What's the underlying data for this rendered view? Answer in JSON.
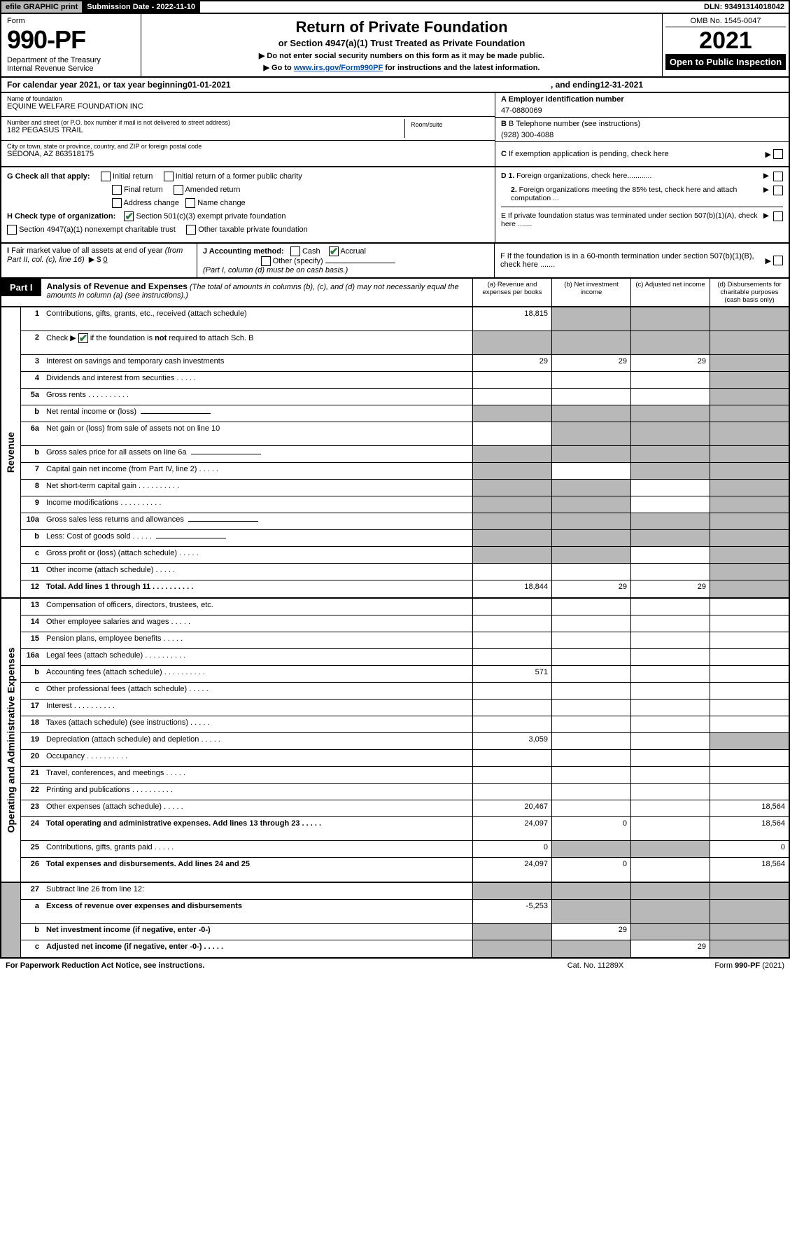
{
  "topbar": {
    "efile": "efile GRAPHIC print",
    "subdate_label": "Submission Date - 2022-11-10",
    "dln": "DLN: 93491314018042"
  },
  "header": {
    "form_word": "Form",
    "form_no": "990-PF",
    "dept": "Department of the Treasury\nInternal Revenue Service",
    "title": "Return of Private Foundation",
    "subtitle": "or Section 4947(a)(1) Trust Treated as Private Foundation",
    "instr1": "▶ Do not enter social security numbers on this form as it may be made public.",
    "instr2_pre": "▶ Go to ",
    "instr2_link": "www.irs.gov/Form990PF",
    "instr2_post": " for instructions and the latest information.",
    "omb": "OMB No. 1545-0047",
    "year": "2021",
    "otp": "Open to Public Inspection"
  },
  "calrow": {
    "pre": "For calendar year 2021, or tax year beginning ",
    "begin": "01-01-2021",
    "mid": ", and ending ",
    "end": "12-31-2021"
  },
  "info": {
    "name_label": "Name of foundation",
    "name": "EQUINE WELFARE FOUNDATION INC",
    "addr_label": "Number and street (or P.O. box number if mail is not delivered to street address)",
    "addr": "182 PEGASUS TRAIL",
    "room_label": "Room/suite",
    "city_label": "City or town, state or province, country, and ZIP or foreign postal code",
    "city": "SEDONA, AZ  863518175",
    "a_label": "A Employer identification number",
    "a_val": "47-0880069",
    "b_label": "B Telephone number (see instructions)",
    "b_val": "(928) 300-4088",
    "c_label": "C If exemption application is pending, check here"
  },
  "checks": {
    "g_label": "G Check all that apply:",
    "g_opts": [
      "Initial return",
      "Initial return of a former public charity",
      "Final return",
      "Amended return",
      "Address change",
      "Name change"
    ],
    "h_label": "H Check type of organization:",
    "h_opt1": "Section 501(c)(3) exempt private foundation",
    "h_opt2": "Section 4947(a)(1) nonexempt charitable trust",
    "h_opt3": "Other taxable private foundation",
    "i_label": "I Fair market value of all assets at end of year (from Part II, col. (c), line 16)",
    "i_prefix": "▶ $",
    "i_val": "0",
    "j_label": "J Accounting method:",
    "j_cash": "Cash",
    "j_accrual": "Accrual",
    "j_other": "Other (specify)",
    "j_note": "(Part I, column (d) must be on cash basis.)",
    "d1": "D 1. Foreign organizations, check here............",
    "d2": "2. Foreign organizations meeting the 85% test, check here and attach computation ...",
    "e": "E  If private foundation status was terminated under section 507(b)(1)(A), check here .......",
    "f": "F  If the foundation is in a 60-month termination under section 507(b)(1)(B), check here .......",
    "arrow": "▶"
  },
  "part1": {
    "tag": "Part I",
    "title": "Analysis of Revenue and Expenses",
    "title_note": " (The total of amounts in columns (b), (c), and (d) may not necessarily equal the amounts in column (a) (see instructions).)",
    "cols": {
      "a": "(a)  Revenue and expenses per books",
      "b": "(b)  Net investment income",
      "c": "(c)  Adjusted net income",
      "d": "(d)  Disbursements for charitable purposes (cash basis only)"
    }
  },
  "side_labels": {
    "rev": "Revenue",
    "exp": "Operating and Administrative Expenses"
  },
  "lines": {
    "1": {
      "n": "1",
      "d": "Contributions, gifts, grants, etc., received (attach schedule)",
      "a": "18,815",
      "shade_bcd": true,
      "tall": true
    },
    "2": {
      "n": "2",
      "d_pre": "Check ▶ ",
      "d_post": " if the foundation is not required to attach Sch. B",
      "chk": true,
      "shade_abcd": true,
      "tall": true
    },
    "3": {
      "n": "3",
      "d": "Interest on savings and temporary cash investments",
      "a": "29",
      "b": "29",
      "c": "29",
      "shade_d": true
    },
    "4": {
      "n": "4",
      "d": "Dividends and interest from securities",
      "dots": "sm",
      "shade_d": true
    },
    "5a": {
      "n": "5a",
      "d": "Gross rents",
      "dots": "lg",
      "shade_d": true
    },
    "5b": {
      "n": "b",
      "d": "Net rental income or (loss)",
      "blank_after": true,
      "shade_abcd": true
    },
    "6a": {
      "n": "6a",
      "d": "Net gain or (loss) from sale of assets not on line 10",
      "shade_bcd": true,
      "tall": true
    },
    "6b": {
      "n": "b",
      "d": "Gross sales price for all assets on line 6a",
      "blank_after": true,
      "shade_abcd": true
    },
    "7": {
      "n": "7",
      "d": "Capital gain net income (from Part IV, line 2)",
      "dots": "sm",
      "shade_a": true,
      "shade_cd": true
    },
    "8": {
      "n": "8",
      "d": "Net short-term capital gain",
      "dots": "lg",
      "shade_ab": true,
      "shade_d": true
    },
    "9": {
      "n": "9",
      "d": "Income modifications",
      "dots": "lg",
      "shade_ab": true,
      "shade_d": true
    },
    "10a": {
      "n": "10a",
      "d": "Gross sales less returns and allowances",
      "blank_after": true,
      "shade_abcd": true
    },
    "10b": {
      "n": "b",
      "d": "Less: Cost of goods sold",
      "dots": "sm",
      "blank_after": true,
      "shade_abcd": true
    },
    "10c": {
      "n": "c",
      "d": "Gross profit or (loss) (attach schedule)",
      "dots": "sm",
      "shade_ab": true,
      "shade_d": true
    },
    "11": {
      "n": "11",
      "d": "Other income (attach schedule)",
      "dots": "sm",
      "shade_d": true
    },
    "12": {
      "n": "12",
      "d": "Total. Add lines 1 through 11",
      "dots": "lg",
      "bold": true,
      "a": "18,844",
      "b": "29",
      "c": "29",
      "shade_d": true
    },
    "13": {
      "n": "13",
      "d": "Compensation of officers, directors, trustees, etc."
    },
    "14": {
      "n": "14",
      "d": "Other employee salaries and wages",
      "dots": "sm"
    },
    "15": {
      "n": "15",
      "d": "Pension plans, employee benefits",
      "dots": "sm"
    },
    "16a": {
      "n": "16a",
      "d": "Legal fees (attach schedule)",
      "dots": "lg"
    },
    "16b": {
      "n": "b",
      "d": "Accounting fees (attach schedule)",
      "dots": "lg",
      "a": "571"
    },
    "16c": {
      "n": "c",
      "d": "Other professional fees (attach schedule)",
      "dots": "sm"
    },
    "17": {
      "n": "17",
      "d": "Interest",
      "dots": "lg"
    },
    "18": {
      "n": "18",
      "d": "Taxes (attach schedule) (see instructions)",
      "dots": "sm"
    },
    "19": {
      "n": "19",
      "d": "Depreciation (attach schedule) and depletion",
      "dots": "sm",
      "a": "3,059",
      "shade_d": true
    },
    "20": {
      "n": "20",
      "d": "Occupancy",
      "dots": "lg"
    },
    "21": {
      "n": "21",
      "d": "Travel, conferences, and meetings",
      "dots": "sm"
    },
    "22": {
      "n": "22",
      "d": "Printing and publications",
      "dots": "lg"
    },
    "23": {
      "n": "23",
      "d": "Other expenses (attach schedule)",
      "dots": "sm",
      "a": "20,467",
      "d_col": "18,564"
    },
    "24": {
      "n": "24",
      "d": "Total operating and administrative expenses. Add lines 13 through 23",
      "dots": "sm",
      "bold": true,
      "a": "24,097",
      "b": "0",
      "d_col": "18,564",
      "tall": true
    },
    "25": {
      "n": "25",
      "d": "Contributions, gifts, grants paid",
      "dots": "sm",
      "a": "0",
      "shade_bc": true,
      "d_col": "0"
    },
    "26": {
      "n": "26",
      "d": "Total expenses and disbursements. Add lines 24 and 25",
      "bold": true,
      "a": "24,097",
      "b": "0",
      "d_col": "18,564",
      "tall": true
    },
    "27": {
      "n": "27",
      "d": "Subtract line 26 from line 12:",
      "shade_abcd": true
    },
    "27a": {
      "n": "a",
      "d": "Excess of revenue over expenses and disbursements",
      "bold": true,
      "a": "-5,253",
      "shade_bcd": true,
      "tall": true
    },
    "27b": {
      "n": "b",
      "d": "Net investment income (if negative, enter -0-)",
      "bold": true,
      "shade_a": true,
      "b": "29",
      "shade_cd": true
    },
    "27c": {
      "n": "c",
      "d": "Adjusted net income (if negative, enter -0-)",
      "bold": true,
      "dots": "sm",
      "shade_ab": true,
      "c": "29",
      "shade_d": true
    }
  },
  "footer": {
    "left": "For Paperwork Reduction Act Notice, see instructions.",
    "mid": "Cat. No. 11289X",
    "right_pre": "Form ",
    "right_form": "990-PF",
    "right_post": " (2021)"
  },
  "colors": {
    "shade": "#b8b8b8",
    "link": "#0050b3",
    "check": "#2d7a3a"
  }
}
